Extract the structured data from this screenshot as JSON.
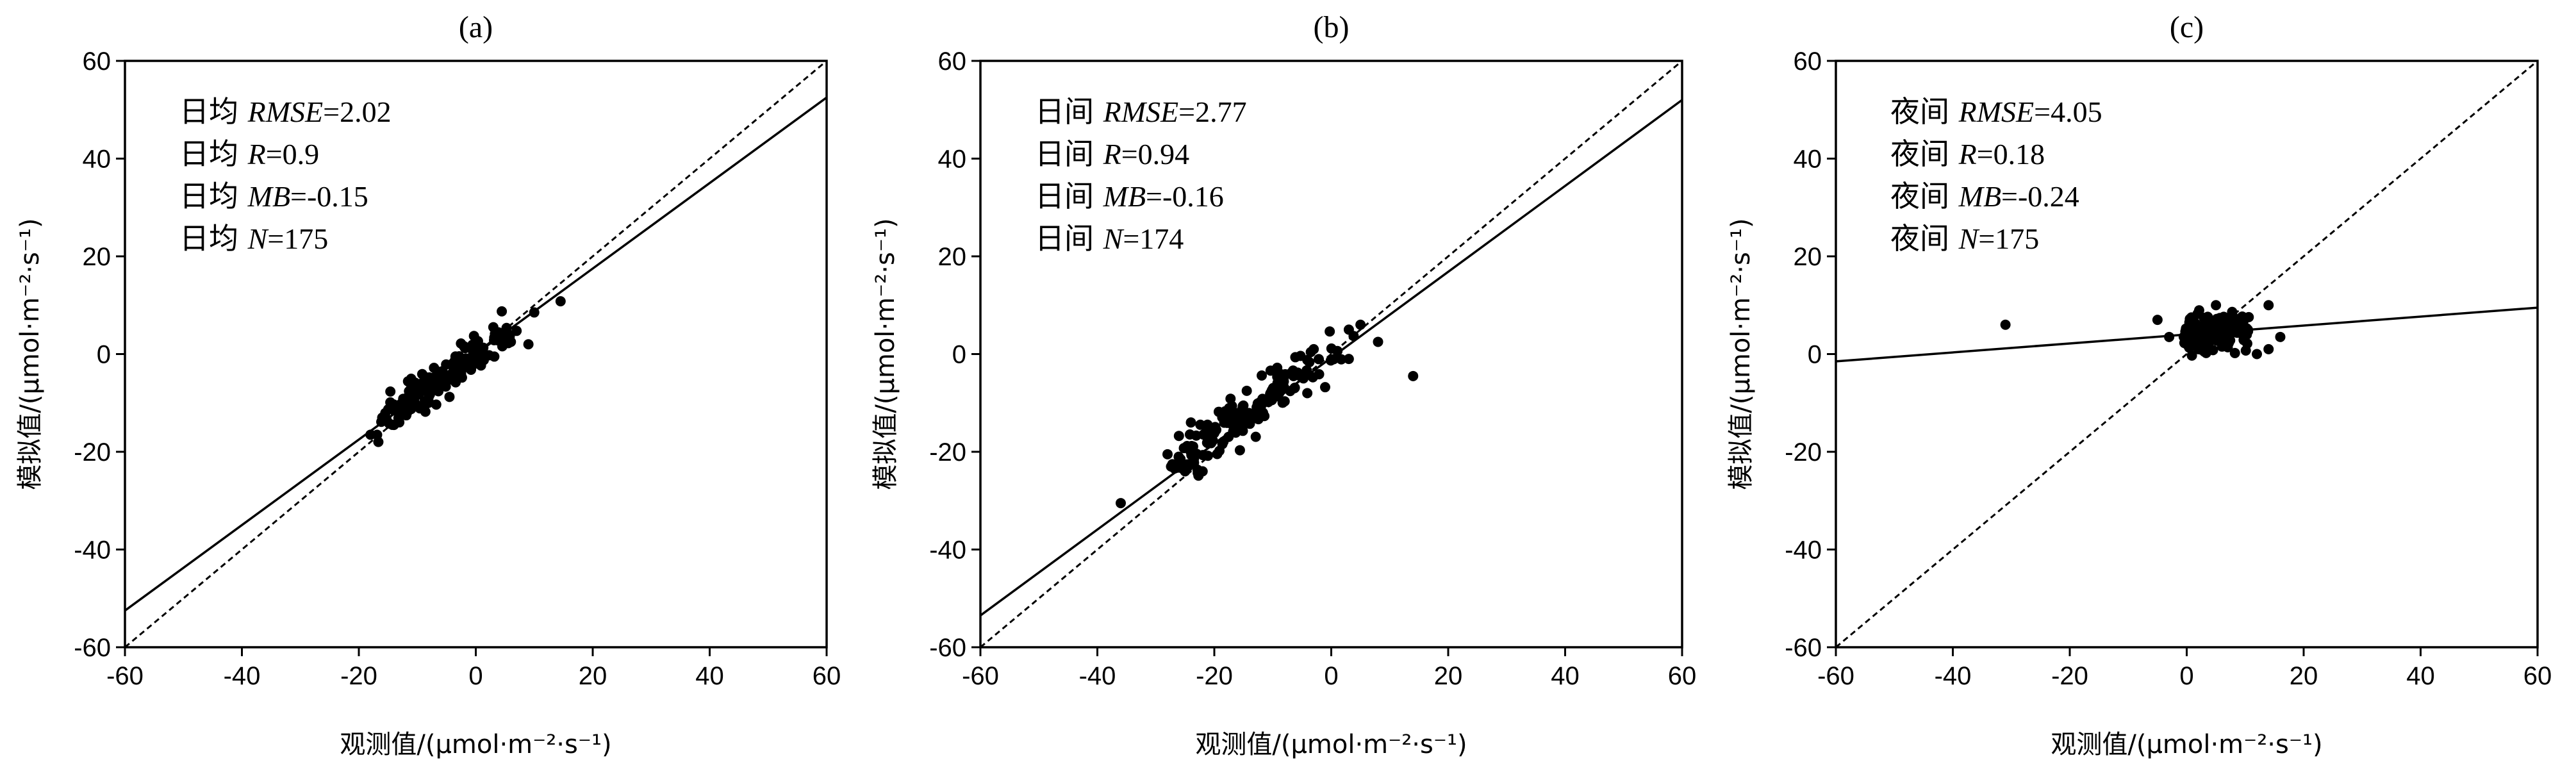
{
  "chart_data": [
    {
      "type": "scatter",
      "title": "(a)",
      "xlabel": "观测值/(μmol·m⁻²·s⁻¹)",
      "ylabel": "模拟值/(μmol·m⁻²·s⁻¹)",
      "xlim": [
        -60,
        60
      ],
      "ylim": [
        -60,
        60
      ],
      "xticks": [
        "-60",
        "-40",
        "-20",
        "0",
        "20",
        "40",
        "60"
      ],
      "yticks": [
        "-60",
        "-40",
        "-20",
        "0",
        "20",
        "40",
        "60"
      ],
      "stats": [
        {
          "prefix": "日均",
          "name": "RMSE",
          "value": "=2.02"
        },
        {
          "prefix": "日均",
          "name": "R",
          "value": "=0.9"
        },
        {
          "prefix": "日均",
          "name": "MB",
          "value": "=-0.15"
        },
        {
          "prefix": "日均",
          "name": "N",
          "value": "=175"
        }
      ],
      "fit_line": {
        "x": [
          -60,
          60
        ],
        "y": [
          -52.5,
          52.5
        ]
      },
      "one_to_one": {
        "x": [
          -60,
          60
        ],
        "y": [
          -60,
          60
        ]
      },
      "cloud": {
        "n": 175,
        "xmin": -17,
        "xmax": 10,
        "slope": 0.85,
        "intercept": 0,
        "spread": 2.0,
        "seed": 11
      },
      "points": [
        [
          14.5,
          10.8
        ],
        [
          -18,
          -16.5
        ],
        [
          -16,
          -13
        ],
        [
          -14,
          -14.5
        ],
        [
          -12,
          -12
        ],
        [
          -10,
          -10.5
        ],
        [
          -7,
          -5
        ],
        [
          3,
          5.5
        ],
        [
          6,
          2.5
        ],
        [
          9,
          2
        ]
      ]
    },
    {
      "type": "scatter",
      "title": "(b)",
      "xlabel": "观测值/(μmol·m⁻²·s⁻¹)",
      "ylabel": "模拟值/(μmol·m⁻²·s⁻¹)",
      "xlim": [
        -60,
        60
      ],
      "ylim": [
        -60,
        60
      ],
      "xticks": [
        "-60",
        "-40",
        "-20",
        "0",
        "20",
        "40",
        "60"
      ],
      "yticks": [
        "-60",
        "-40",
        "-20",
        "0",
        "20",
        "40",
        "60"
      ],
      "stats": [
        {
          "prefix": "日间",
          "name": "RMSE",
          "value": "=2.77"
        },
        {
          "prefix": "日间",
          "name": "R",
          "value": "=0.94"
        },
        {
          "prefix": "日间",
          "name": "MB",
          "value": "=-0.16"
        },
        {
          "prefix": "日间",
          "name": "N",
          "value": "=174"
        }
      ],
      "fit_line": {
        "x": [
          -60,
          60
        ],
        "y": [
          -53.5,
          52
        ]
      },
      "one_to_one": {
        "x": [
          -60,
          60
        ],
        "y": [
          -60,
          60
        ]
      },
      "cloud": {
        "n": 174,
        "xmin": -27,
        "xmax": 6,
        "slope": 0.85,
        "intercept": 0,
        "spread": 2.2,
        "seed": 23
      },
      "points": [
        [
          -36,
          -30.5
        ],
        [
          -28,
          -20.5
        ],
        [
          -25,
          -24
        ],
        [
          -24,
          -14
        ],
        [
          -22,
          -24
        ],
        [
          14,
          -4.5
        ],
        [
          8,
          2.5
        ],
        [
          5,
          6
        ],
        [
          3,
          -1
        ],
        [
          -3,
          1
        ]
      ]
    },
    {
      "type": "scatter",
      "title": "(c)",
      "xlabel": "观测值/(μmol·m⁻²·s⁻¹)",
      "ylabel": "模拟值/(μmol·m⁻²·s⁻¹)",
      "xlim": [
        -60,
        60
      ],
      "ylim": [
        -60,
        60
      ],
      "xticks": [
        "-60",
        "-40",
        "-20",
        "0",
        "20",
        "40",
        "60"
      ],
      "yticks": [
        "-60",
        "-40",
        "-20",
        "0",
        "20",
        "40",
        "60"
      ],
      "stats": [
        {
          "prefix": "夜间",
          "name": "RMSE",
          "value": "=4.05"
        },
        {
          "prefix": "夜间",
          "name": "R",
          "value": "=0.18"
        },
        {
          "prefix": "夜间",
          "name": "MB",
          "value": "=-0.24"
        },
        {
          "prefix": "夜间",
          "name": "N",
          "value": "=175"
        }
      ],
      "fit_line": {
        "x": [
          -60,
          60
        ],
        "y": [
          -1.5,
          9.5
        ]
      },
      "one_to_one": {
        "x": [
          -60,
          60
        ],
        "y": [
          -60,
          60
        ]
      },
      "cloud": {
        "n": 175,
        "xmin": 0,
        "xmax": 12,
        "slope": 0.0,
        "intercept": 4.5,
        "spread": 1.8,
        "seed": 37
      },
      "points": [
        [
          -31,
          6
        ],
        [
          -5,
          7
        ],
        [
          -3,
          3.5
        ],
        [
          2,
          1
        ],
        [
          3,
          0.5
        ],
        [
          5,
          10
        ],
        [
          14,
          10
        ],
        [
          14,
          1
        ],
        [
          16,
          3.5
        ],
        [
          12,
          0
        ]
      ]
    }
  ]
}
